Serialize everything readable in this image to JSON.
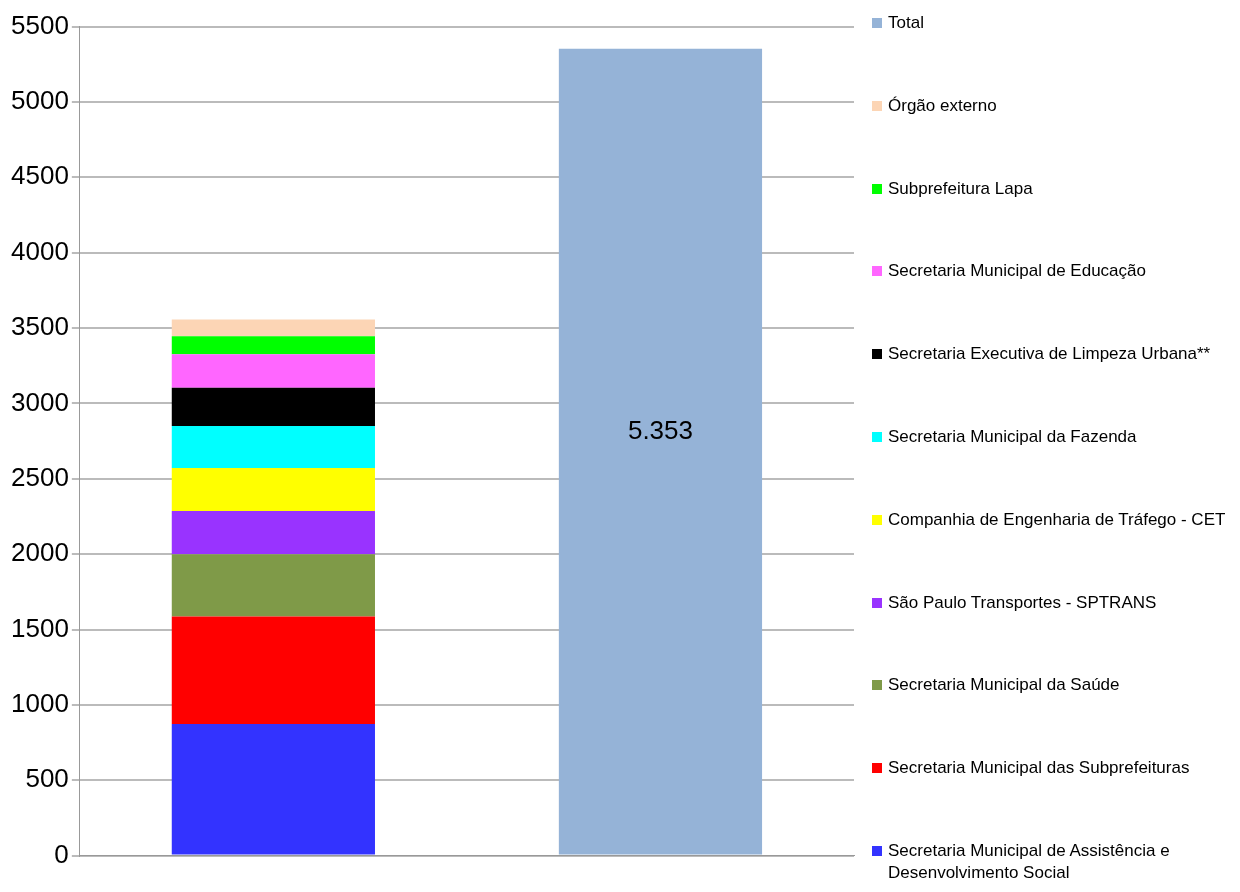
{
  "chart_data": {
    "type": "bar",
    "stacked": true,
    "categories": [
      null,
      null
    ],
    "ylim": [
      0,
      5500
    ],
    "yticks": [
      0,
      500,
      1000,
      1500,
      2000,
      2500,
      3000,
      3500,
      4000,
      4500,
      5000,
      5500
    ],
    "grid": "y",
    "legend": "right",
    "series": [
      {
        "name": "Secretaria Municipal de Assistência e Desenvolvimento Social",
        "color": "#3333ff",
        "values": [
          873,
          null
        ]
      },
      {
        "name": "Secretaria Municipal das Subprefeituras",
        "color": "#ff0000",
        "values": [
          714,
          null
        ]
      },
      {
        "name": "Secretaria Municipal da Saúde",
        "color": "#7f9a48",
        "values": [
          413,
          null
        ]
      },
      {
        "name": "São Paulo Transportes - SPTRANS",
        "color": "#9933ff",
        "values": [
          286,
          null
        ]
      },
      {
        "name": "Companhia de Engenharia de Tráfego - CET",
        "color": "#ffff00",
        "values": [
          286,
          null
        ]
      },
      {
        "name": "Secretaria Municipal da Fazenda",
        "color": "#00ffff",
        "values": [
          278,
          null
        ]
      },
      {
        "name": "Secretaria Executiva de Limpeza Urbana**",
        "color": "#000000",
        "values": [
          254,
          null
        ]
      },
      {
        "name": "Secretaria Municipal de Educação",
        "color": "#ff66ff",
        "values": [
          222,
          null
        ]
      },
      {
        "name": "Subprefeitura Lapa",
        "color": "#00ff00",
        "values": [
          119,
          null
        ]
      },
      {
        "name": "Órgão externo",
        "color": "#fcd5b5",
        "values": [
          111,
          null
        ]
      },
      {
        "name": "Total",
        "color": "#95b3d7",
        "values": [
          null,
          5353
        ],
        "value_labels": [
          null,
          "5.353"
        ]
      }
    ]
  }
}
